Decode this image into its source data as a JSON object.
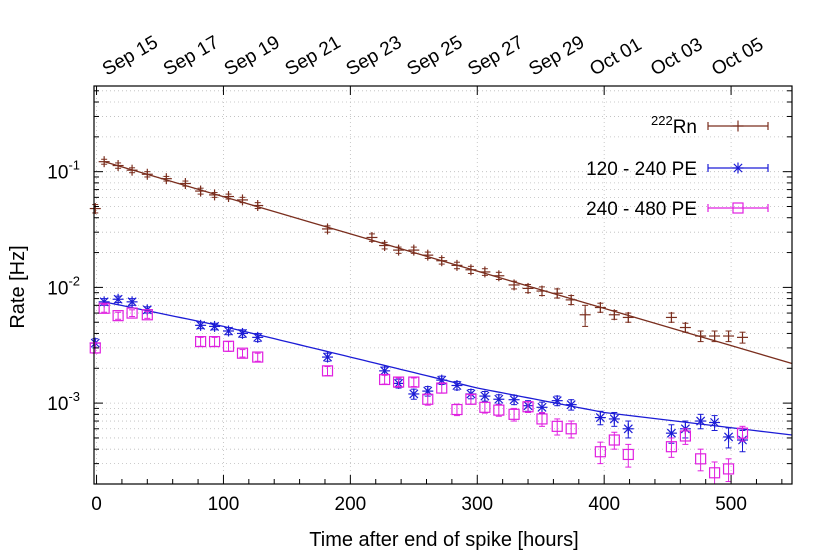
{
  "chart_data": {
    "type": "scatter",
    "xlabel": "Time after end of spike [hours]",
    "ylabel": "Rate [Hz]",
    "yscale": "log",
    "xlim": [
      -2,
      548
    ],
    "ylim": [
      0.0002,
      0.55
    ],
    "grid": true,
    "legend_position": "top-right",
    "x_ticks": [
      0,
      100,
      200,
      300,
      400,
      500
    ],
    "x_tick_labels": [
      "0",
      "100",
      "200",
      "300",
      "400",
      "500"
    ],
    "y_ticks": [
      0.1,
      0.01,
      0.001
    ],
    "y_tick_labels": [
      {
        "base": "10",
        "exp": "-1"
      },
      {
        "base": "10",
        "exp": "-2"
      },
      {
        "base": "10",
        "exp": "-3"
      }
    ],
    "top_axis": {
      "start_hours": 13,
      "step_hours": 48,
      "labels": [
        "Sep 15",
        "Sep 17",
        "Sep 19",
        "Sep 21",
        "Sep 23",
        "Sep 25",
        "Sep 27",
        "Sep 29",
        "Oct 01",
        "Oct 03",
        "Oct 05"
      ]
    },
    "series": [
      {
        "name": "Rn",
        "name_sup": "222",
        "color": "#7a2e1e",
        "marker": "plus",
        "points": [
          [
            -1,
            0.048,
            0.004
          ],
          [
            6,
            0.122,
            0.006
          ],
          [
            17,
            0.113,
            0.006
          ],
          [
            28,
            0.103,
            0.005
          ],
          [
            40,
            0.095,
            0.005
          ],
          [
            55,
            0.087,
            0.004
          ],
          [
            70,
            0.079,
            0.004
          ],
          [
            82,
            0.068,
            0.004
          ],
          [
            93,
            0.063,
            0.003
          ],
          [
            104,
            0.061,
            0.003
          ],
          [
            115,
            0.057,
            0.003
          ],
          [
            127,
            0.051,
            0.003
          ],
          [
            182,
            0.032,
            0.002
          ],
          [
            217,
            0.027,
            0.002
          ],
          [
            227,
            0.023,
            0.0015
          ],
          [
            238,
            0.021,
            0.0013
          ],
          [
            250,
            0.021,
            0.0013
          ],
          [
            261,
            0.019,
            0.0012
          ],
          [
            272,
            0.017,
            0.0011
          ],
          [
            284,
            0.0155,
            0.001
          ],
          [
            295,
            0.0142,
            0.001
          ],
          [
            306,
            0.0136,
            0.0009
          ],
          [
            317,
            0.0126,
            0.0009
          ],
          [
            329,
            0.0105,
            0.0008
          ],
          [
            340,
            0.0098,
            0.0008
          ],
          [
            351,
            0.0093,
            0.0008
          ],
          [
            363,
            0.0089,
            0.0008
          ],
          [
            374,
            0.0078,
            0.0007
          ],
          [
            385,
            0.0058,
            0.0012
          ],
          [
            397,
            0.0067,
            0.0006
          ],
          [
            408,
            0.0058,
            0.0005
          ],
          [
            419,
            0.0055,
            0.0005
          ],
          [
            453,
            0.0055,
            0.0005
          ],
          [
            464,
            0.0045,
            0.0004
          ],
          [
            476,
            0.0038,
            0.0004
          ],
          [
            487,
            0.0038,
            0.0004
          ],
          [
            498,
            0.0038,
            0.0004
          ],
          [
            509,
            0.0037,
            0.0004
          ]
        ],
        "fit": [
          [
            6,
            0.122
          ],
          [
            548,
            0.0022
          ]
        ]
      },
      {
        "name": "120 - 240 PE",
        "color": "#1c1cd6",
        "marker": "star",
        "points": [
          [
            -1,
            0.0033,
            0.0003
          ],
          [
            6,
            0.0075,
            0.0005
          ],
          [
            17,
            0.0079,
            0.0005
          ],
          [
            28,
            0.0075,
            0.0005
          ],
          [
            40,
            0.0064,
            0.0004
          ],
          [
            82,
            0.0047,
            0.0003
          ],
          [
            93,
            0.0046,
            0.0003
          ],
          [
            104,
            0.0042,
            0.0003
          ],
          [
            115,
            0.004,
            0.0003
          ],
          [
            127,
            0.0037,
            0.0003
          ],
          [
            182,
            0.0025,
            0.0002
          ],
          [
            227,
            0.0019,
            0.00015
          ],
          [
            238,
            0.00148,
            0.00013
          ],
          [
            250,
            0.0012,
            0.00012
          ],
          [
            261,
            0.00127,
            0.00012
          ],
          [
            272,
            0.00158,
            0.00013
          ],
          [
            284,
            0.00142,
            0.00012
          ],
          [
            295,
            0.0012,
            0.00011
          ],
          [
            306,
            0.00115,
            0.00011
          ],
          [
            317,
            0.00108,
            0.0001
          ],
          [
            329,
            0.00107,
            0.0001
          ],
          [
            340,
            0.00095,
            0.0001
          ],
          [
            351,
            0.00092,
            0.0001
          ],
          [
            363,
            0.00105,
            0.0001
          ],
          [
            374,
            0.00097,
            0.0001
          ],
          [
            397,
            0.00075,
            0.0001
          ],
          [
            408,
            0.00073,
            0.0001
          ],
          [
            419,
            0.0006,
            0.0001
          ],
          [
            453,
            0.00055,
            0.0001
          ],
          [
            464,
            0.0006,
            0.0001
          ],
          [
            476,
            0.0007,
            0.0001
          ],
          [
            487,
            0.00068,
            0.0001
          ],
          [
            498,
            0.00051,
            0.0001
          ],
          [
            509,
            0.00048,
            0.0001
          ]
        ],
        "fit": [
          [
            6,
            0.0075
          ],
          [
            100,
            0.0046
          ],
          [
            200,
            0.0025
          ],
          [
            300,
            0.00135
          ],
          [
            400,
            0.00083
          ],
          [
            548,
            0.00053
          ]
        ]
      },
      {
        "name": "240 - 480 PE",
        "color": "#e020e0",
        "marker": "square",
        "points": [
          [
            -1,
            0.003,
            0.0003
          ],
          [
            6,
            0.0066,
            0.0005
          ],
          [
            17,
            0.0057,
            0.0004
          ],
          [
            28,
            0.006,
            0.0004
          ],
          [
            40,
            0.0058,
            0.0004
          ],
          [
            82,
            0.0034,
            0.0003
          ],
          [
            93,
            0.0034,
            0.0003
          ],
          [
            104,
            0.0031,
            0.0003
          ],
          [
            115,
            0.0027,
            0.0002
          ],
          [
            127,
            0.0025,
            0.0002
          ],
          [
            182,
            0.0019,
            0.00017
          ],
          [
            227,
            0.0016,
            0.00014
          ],
          [
            238,
            0.00152,
            0.00013
          ],
          [
            250,
            0.00152,
            0.00013
          ],
          [
            261,
            0.00108,
            0.00012
          ],
          [
            272,
            0.00135,
            0.00013
          ],
          [
            284,
            0.00088,
            0.0001
          ],
          [
            295,
            0.00108,
            0.0001
          ],
          [
            306,
            0.00092,
            0.0001
          ],
          [
            317,
            0.00087,
            0.0001
          ],
          [
            329,
            0.0008,
            0.0001
          ],
          [
            340,
            0.00093,
            0.0001
          ],
          [
            351,
            0.00073,
            0.0001
          ],
          [
            363,
            0.00063,
            0.0001
          ],
          [
            374,
            0.0006,
            0.0001
          ],
          [
            397,
            0.00038,
            8e-05
          ],
          [
            408,
            0.00048,
            8e-05
          ],
          [
            419,
            0.00036,
            8e-05
          ],
          [
            453,
            0.00042,
            8e-05
          ],
          [
            464,
            0.00052,
            8e-05
          ],
          [
            476,
            0.00033,
            7e-05
          ],
          [
            487,
            0.00025,
            6e-05
          ],
          [
            498,
            0.00027,
            6e-05
          ],
          [
            509,
            0.00055,
            8e-05
          ]
        ]
      }
    ]
  }
}
